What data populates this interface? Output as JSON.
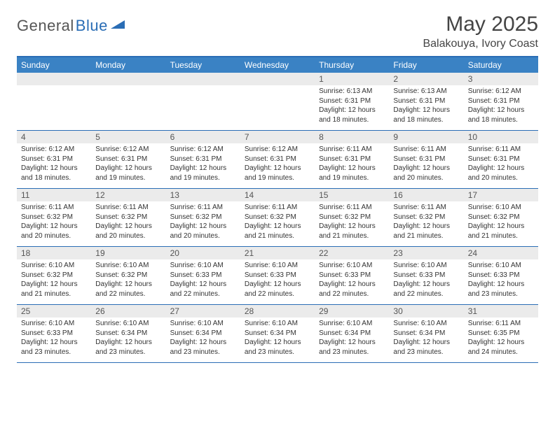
{
  "logo": {
    "text_gray": "General",
    "text_blue": "Blue"
  },
  "title": "May 2025",
  "location": "Balakouya, Ivory Coast",
  "colors": {
    "header_bg": "#3a82c4",
    "border": "#2a6db5",
    "daynum_bg": "#ebebeb",
    "text": "#333333"
  },
  "days_of_week": [
    "Sunday",
    "Monday",
    "Tuesday",
    "Wednesday",
    "Thursday",
    "Friday",
    "Saturday"
  ],
  "weeks": [
    [
      {
        "n": "",
        "sr": "",
        "ss": "",
        "dl": ""
      },
      {
        "n": "",
        "sr": "",
        "ss": "",
        "dl": ""
      },
      {
        "n": "",
        "sr": "",
        "ss": "",
        "dl": ""
      },
      {
        "n": "",
        "sr": "",
        "ss": "",
        "dl": ""
      },
      {
        "n": "1",
        "sr": "Sunrise: 6:13 AM",
        "ss": "Sunset: 6:31 PM",
        "dl": "Daylight: 12 hours and 18 minutes."
      },
      {
        "n": "2",
        "sr": "Sunrise: 6:13 AM",
        "ss": "Sunset: 6:31 PM",
        "dl": "Daylight: 12 hours and 18 minutes."
      },
      {
        "n": "3",
        "sr": "Sunrise: 6:12 AM",
        "ss": "Sunset: 6:31 PM",
        "dl": "Daylight: 12 hours and 18 minutes."
      }
    ],
    [
      {
        "n": "4",
        "sr": "Sunrise: 6:12 AM",
        "ss": "Sunset: 6:31 PM",
        "dl": "Daylight: 12 hours and 18 minutes."
      },
      {
        "n": "5",
        "sr": "Sunrise: 6:12 AM",
        "ss": "Sunset: 6:31 PM",
        "dl": "Daylight: 12 hours and 19 minutes."
      },
      {
        "n": "6",
        "sr": "Sunrise: 6:12 AM",
        "ss": "Sunset: 6:31 PM",
        "dl": "Daylight: 12 hours and 19 minutes."
      },
      {
        "n": "7",
        "sr": "Sunrise: 6:12 AM",
        "ss": "Sunset: 6:31 PM",
        "dl": "Daylight: 12 hours and 19 minutes."
      },
      {
        "n": "8",
        "sr": "Sunrise: 6:11 AM",
        "ss": "Sunset: 6:31 PM",
        "dl": "Daylight: 12 hours and 19 minutes."
      },
      {
        "n": "9",
        "sr": "Sunrise: 6:11 AM",
        "ss": "Sunset: 6:31 PM",
        "dl": "Daylight: 12 hours and 20 minutes."
      },
      {
        "n": "10",
        "sr": "Sunrise: 6:11 AM",
        "ss": "Sunset: 6:31 PM",
        "dl": "Daylight: 12 hours and 20 minutes."
      }
    ],
    [
      {
        "n": "11",
        "sr": "Sunrise: 6:11 AM",
        "ss": "Sunset: 6:32 PM",
        "dl": "Daylight: 12 hours and 20 minutes."
      },
      {
        "n": "12",
        "sr": "Sunrise: 6:11 AM",
        "ss": "Sunset: 6:32 PM",
        "dl": "Daylight: 12 hours and 20 minutes."
      },
      {
        "n": "13",
        "sr": "Sunrise: 6:11 AM",
        "ss": "Sunset: 6:32 PM",
        "dl": "Daylight: 12 hours and 20 minutes."
      },
      {
        "n": "14",
        "sr": "Sunrise: 6:11 AM",
        "ss": "Sunset: 6:32 PM",
        "dl": "Daylight: 12 hours and 21 minutes."
      },
      {
        "n": "15",
        "sr": "Sunrise: 6:11 AM",
        "ss": "Sunset: 6:32 PM",
        "dl": "Daylight: 12 hours and 21 minutes."
      },
      {
        "n": "16",
        "sr": "Sunrise: 6:11 AM",
        "ss": "Sunset: 6:32 PM",
        "dl": "Daylight: 12 hours and 21 minutes."
      },
      {
        "n": "17",
        "sr": "Sunrise: 6:10 AM",
        "ss": "Sunset: 6:32 PM",
        "dl": "Daylight: 12 hours and 21 minutes."
      }
    ],
    [
      {
        "n": "18",
        "sr": "Sunrise: 6:10 AM",
        "ss": "Sunset: 6:32 PM",
        "dl": "Daylight: 12 hours and 21 minutes."
      },
      {
        "n": "19",
        "sr": "Sunrise: 6:10 AM",
        "ss": "Sunset: 6:32 PM",
        "dl": "Daylight: 12 hours and 22 minutes."
      },
      {
        "n": "20",
        "sr": "Sunrise: 6:10 AM",
        "ss": "Sunset: 6:33 PM",
        "dl": "Daylight: 12 hours and 22 minutes."
      },
      {
        "n": "21",
        "sr": "Sunrise: 6:10 AM",
        "ss": "Sunset: 6:33 PM",
        "dl": "Daylight: 12 hours and 22 minutes."
      },
      {
        "n": "22",
        "sr": "Sunrise: 6:10 AM",
        "ss": "Sunset: 6:33 PM",
        "dl": "Daylight: 12 hours and 22 minutes."
      },
      {
        "n": "23",
        "sr": "Sunrise: 6:10 AM",
        "ss": "Sunset: 6:33 PM",
        "dl": "Daylight: 12 hours and 22 minutes."
      },
      {
        "n": "24",
        "sr": "Sunrise: 6:10 AM",
        "ss": "Sunset: 6:33 PM",
        "dl": "Daylight: 12 hours and 23 minutes."
      }
    ],
    [
      {
        "n": "25",
        "sr": "Sunrise: 6:10 AM",
        "ss": "Sunset: 6:33 PM",
        "dl": "Daylight: 12 hours and 23 minutes."
      },
      {
        "n": "26",
        "sr": "Sunrise: 6:10 AM",
        "ss": "Sunset: 6:34 PM",
        "dl": "Daylight: 12 hours and 23 minutes."
      },
      {
        "n": "27",
        "sr": "Sunrise: 6:10 AM",
        "ss": "Sunset: 6:34 PM",
        "dl": "Daylight: 12 hours and 23 minutes."
      },
      {
        "n": "28",
        "sr": "Sunrise: 6:10 AM",
        "ss": "Sunset: 6:34 PM",
        "dl": "Daylight: 12 hours and 23 minutes."
      },
      {
        "n": "29",
        "sr": "Sunrise: 6:10 AM",
        "ss": "Sunset: 6:34 PM",
        "dl": "Daylight: 12 hours and 23 minutes."
      },
      {
        "n": "30",
        "sr": "Sunrise: 6:10 AM",
        "ss": "Sunset: 6:34 PM",
        "dl": "Daylight: 12 hours and 23 minutes."
      },
      {
        "n": "31",
        "sr": "Sunrise: 6:11 AM",
        "ss": "Sunset: 6:35 PM",
        "dl": "Daylight: 12 hours and 24 minutes."
      }
    ]
  ]
}
